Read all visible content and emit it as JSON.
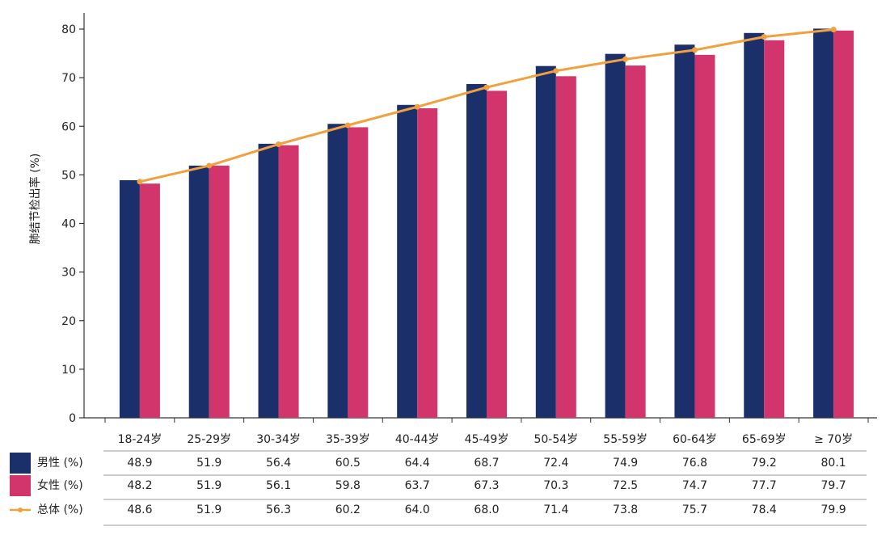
{
  "colors": {
    "male": "#1b2f6b",
    "female": "#d1356b",
    "total": "#f0a03c",
    "axis": "#333333",
    "rule": "#999999"
  },
  "chart_data": {
    "type": "bar",
    "title": "",
    "xlabel": "",
    "ylabel": "肺结节检出率 (%)",
    "ylim": [
      0,
      85
    ],
    "yticks": [
      "0",
      "10",
      "20",
      "30",
      "40",
      "50",
      "60",
      "70",
      "80"
    ],
    "grid": false,
    "categories": [
      "18-24岁",
      "25-29岁",
      "30-34岁",
      "35-39岁",
      "40-44岁",
      "45-49岁",
      "50-54岁",
      "55-59岁",
      "60-64岁",
      "65-69岁",
      "≥ 70岁"
    ],
    "series": [
      {
        "name": "男性 (%)",
        "kind": "bar",
        "color": "#1b2f6b",
        "values": [
          48.9,
          51.9,
          56.4,
          60.5,
          64.4,
          68.7,
          72.4,
          74.9,
          76.8,
          79.2,
          80.1
        ],
        "labels": [
          "48.9",
          "51.9",
          "56.4",
          "60.5",
          "64.4",
          "68.7",
          "72.4",
          "74.9",
          "76.8",
          "79.2",
          "80.1"
        ]
      },
      {
        "name": "女性 (%)",
        "kind": "bar",
        "color": "#d1356b",
        "values": [
          48.2,
          51.9,
          56.1,
          59.8,
          63.7,
          67.3,
          70.3,
          72.5,
          74.7,
          77.7,
          79.7
        ],
        "labels": [
          "48.2",
          "51.9",
          "56.1",
          "59.8",
          "63.7",
          "67.3",
          "70.3",
          "72.5",
          "74.7",
          "77.7",
          "79.7"
        ]
      },
      {
        "name": "总体 (%)",
        "kind": "line",
        "color": "#f0a03c",
        "values": [
          48.6,
          51.9,
          56.3,
          60.2,
          64.0,
          68.0,
          71.4,
          73.8,
          75.7,
          78.4,
          79.9
        ],
        "labels": [
          "48.6",
          "51.9",
          "56.3",
          "60.2",
          "64.0",
          "68.0",
          "71.4",
          "73.8",
          "75.7",
          "78.4",
          "79.9"
        ]
      }
    ]
  }
}
